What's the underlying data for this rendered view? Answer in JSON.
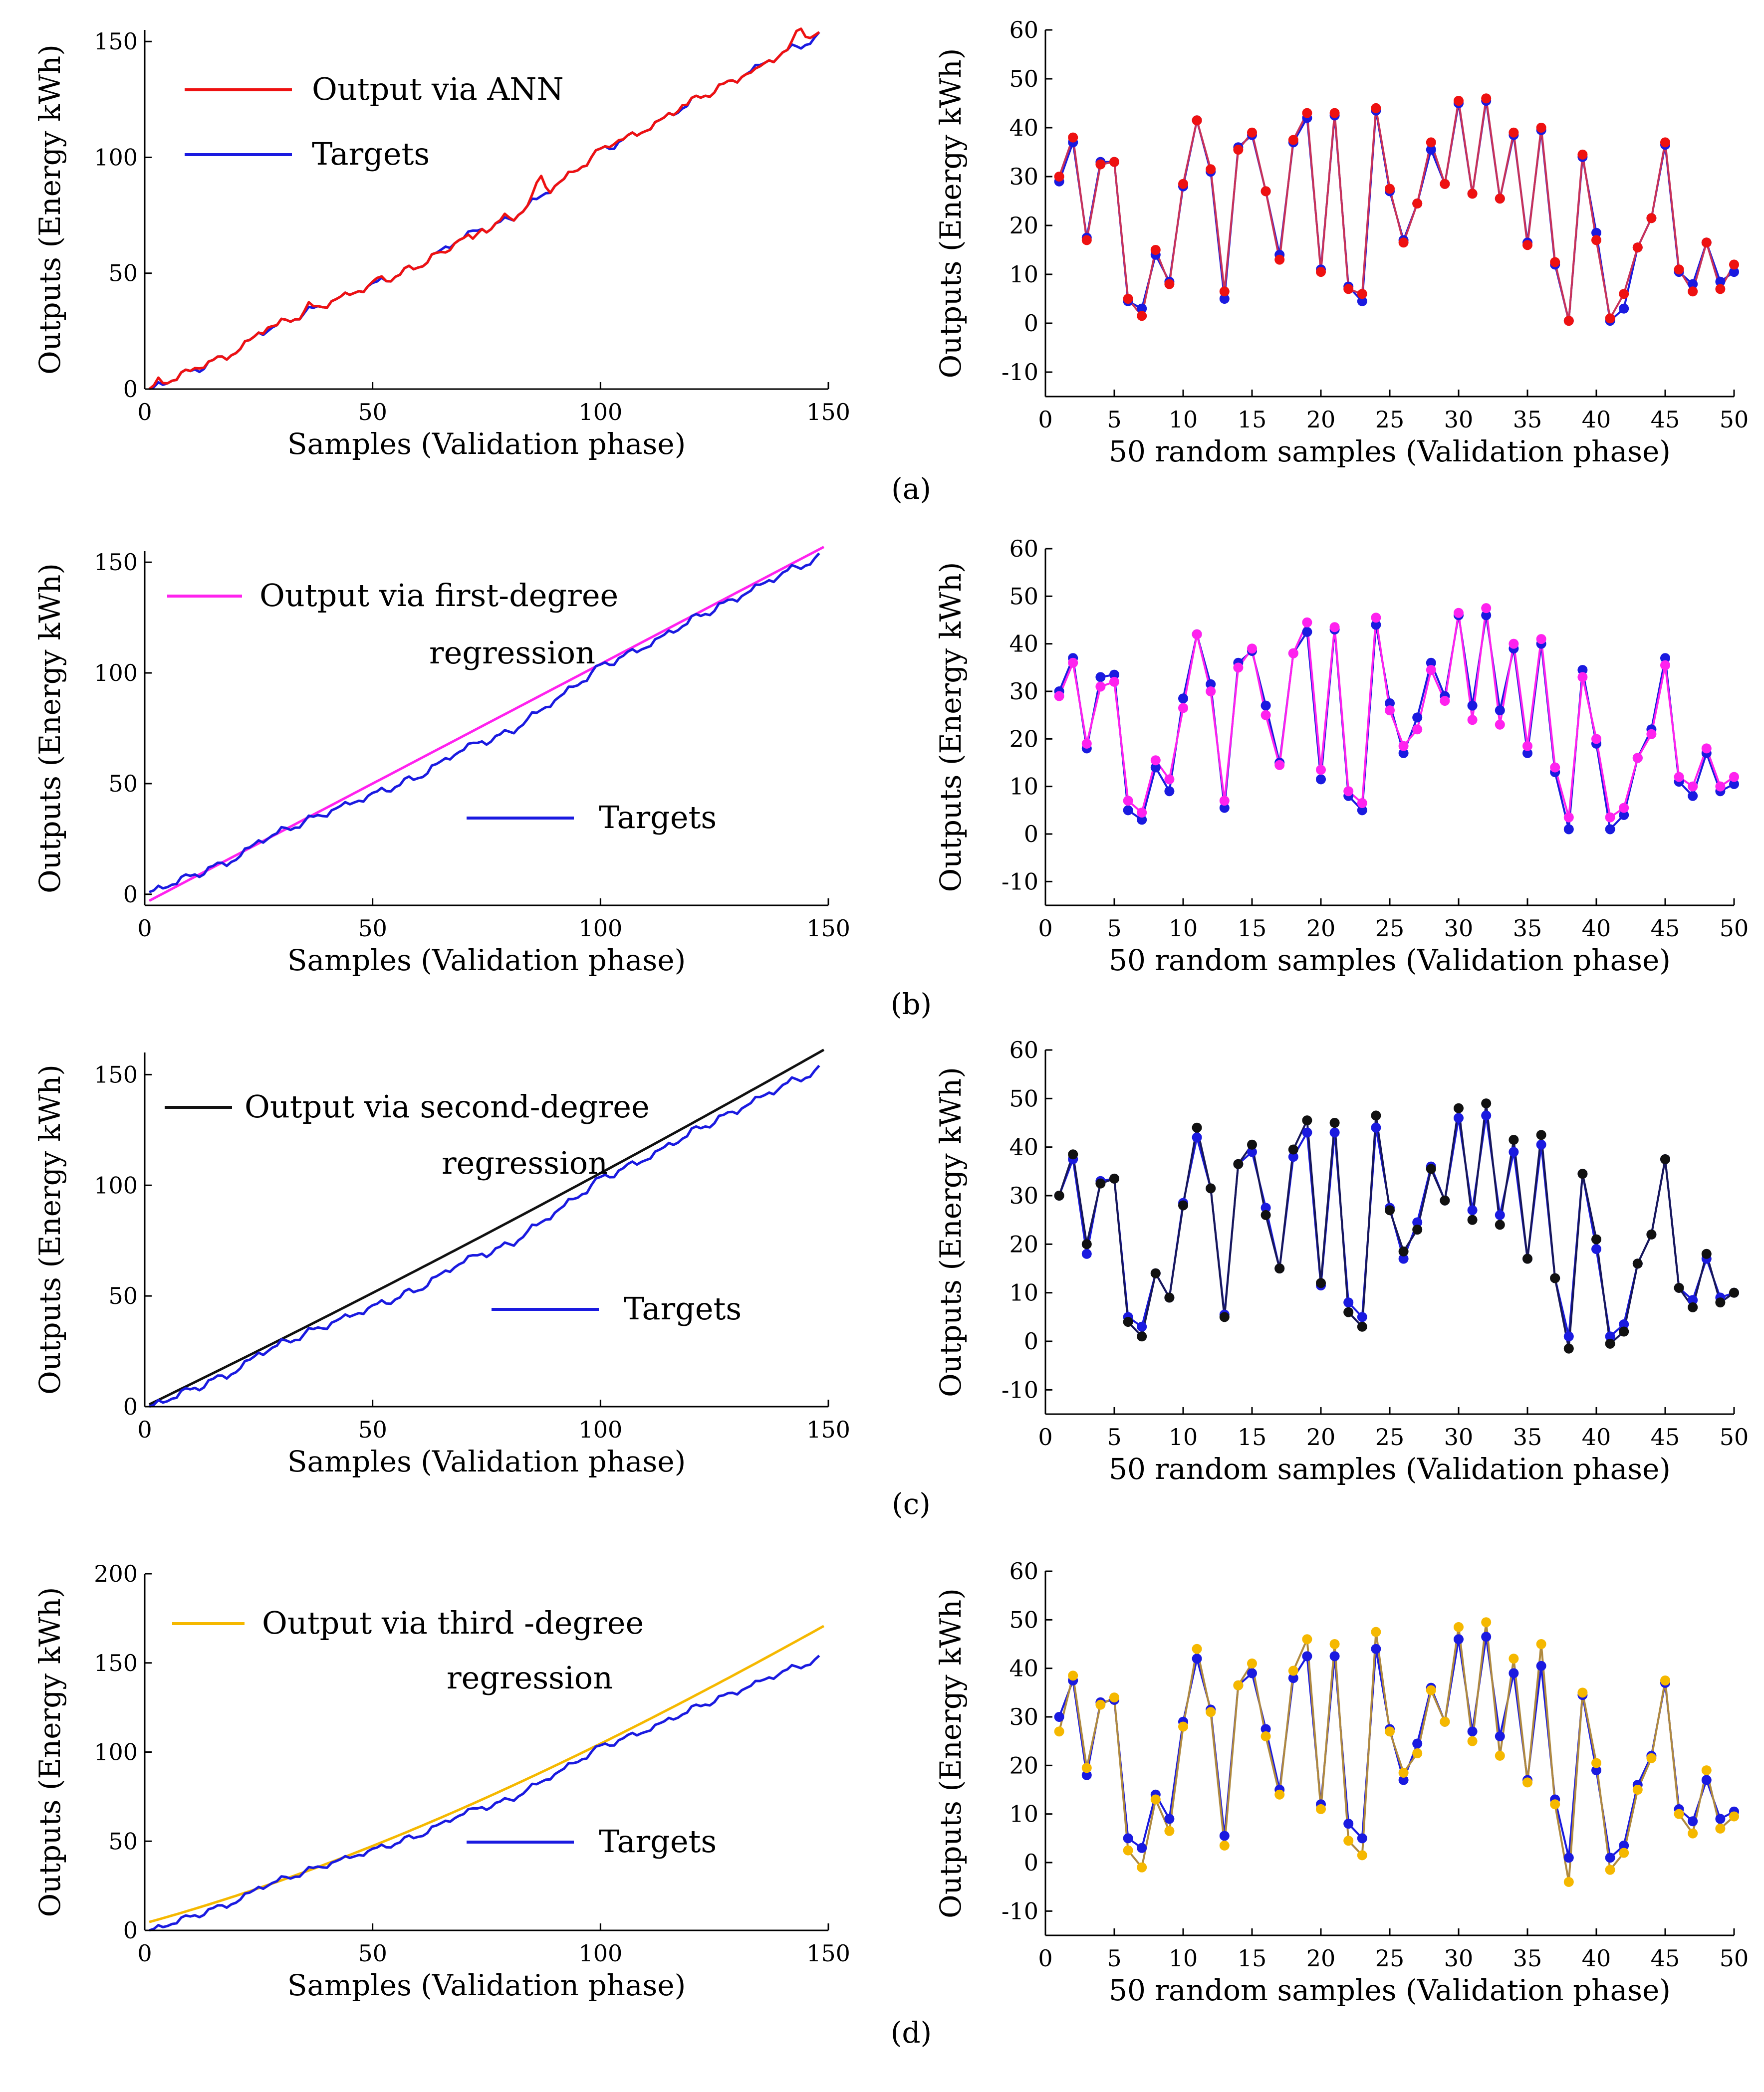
{
  "panel_labels": [
    "(a)",
    "(b)",
    "(c)",
    "(d)"
  ],
  "chart_data": [
    {
      "id": "a_left",
      "type": "line",
      "xlabel": "Samples (Validation phase)",
      "ylabel": "Outputs (Energy kWh)",
      "xlim": [
        0,
        150
      ],
      "ylim": [
        0,
        155
      ],
      "xticks": [
        0,
        50,
        100,
        150
      ],
      "yticks": [
        0,
        50,
        100,
        150
      ],
      "series": [
        {
          "name": "Output via ANN",
          "color": "#ee1111",
          "legend_text": "Output via ANN",
          "kind": "ann",
          "points": [
            [
              1,
              0
            ],
            [
              20,
              16
            ],
            [
              25,
              24
            ],
            [
              40,
              37
            ],
            [
              60,
              53
            ],
            [
              70,
              66
            ],
            [
              80,
              73
            ],
            [
              95,
              95
            ],
            [
              100,
              103
            ],
            [
              110,
              112
            ],
            [
              120,
              124
            ],
            [
              130,
              134
            ],
            [
              140,
              145
            ],
            [
              148,
              152
            ]
          ],
          "bumps": [
            [
              3,
              2
            ],
            [
              12,
              1.5
            ],
            [
              27,
              1.5
            ],
            [
              36,
              2
            ],
            [
              51,
              1.5
            ],
            [
              66,
              -2.5
            ],
            [
              72,
              -3.5
            ],
            [
              79,
              1.5
            ],
            [
              86,
              4.5
            ],
            [
              87,
              7
            ],
            [
              103,
              2
            ],
            [
              118,
              1.5
            ],
            [
              134,
              -1.5
            ],
            [
              143,
              4
            ],
            [
              144,
              7
            ],
            [
              146,
              2.5
            ]
          ]
        },
        {
          "name": "Targets",
          "color": "#1a1ae0",
          "legend_text": "Targets",
          "kind": "target",
          "points": [
            [
              1,
              0
            ],
            [
              20,
              16
            ],
            [
              25,
              24
            ],
            [
              40,
              37
            ],
            [
              60,
              53
            ],
            [
              70,
              66
            ],
            [
              80,
              73
            ],
            [
              95,
              95
            ],
            [
              100,
              103
            ],
            [
              110,
              112
            ],
            [
              120,
              124
            ],
            [
              130,
              134
            ],
            [
              140,
              145
            ],
            [
              148,
              152
            ]
          ]
        }
      ],
      "legend": [
        {
          "label": "Output via ANN",
          "line2": "",
          "color": "#ee1111"
        },
        {
          "label": "Targets",
          "line2": "",
          "color": "#1a1ae0"
        }
      ]
    },
    {
      "id": "b_left",
      "type": "line",
      "xlabel": "Samples (Validation phase)",
      "ylabel": "Outputs (Energy kWh)",
      "xlim": [
        0,
        150
      ],
      "ylim": [
        -5,
        155
      ],
      "xticks": [
        0,
        50,
        100,
        150
      ],
      "yticks": [
        0,
        50,
        100,
        150
      ],
      "series": [
        {
          "name": "Output via first-degree regression",
          "color": "#ff22ee",
          "kind": "poly",
          "coef": [
            -4,
            1.08,
            0,
            0
          ],
          "x0": 1,
          "x1": 149
        },
        {
          "name": "Targets",
          "color": "#1a1ae0",
          "kind": "target",
          "points": [
            [
              1,
              1
            ],
            [
              20,
              16
            ],
            [
              25,
              24
            ],
            [
              40,
              37
            ],
            [
              60,
              53
            ],
            [
              70,
              66
            ],
            [
              80,
              73
            ],
            [
              95,
              95
            ],
            [
              100,
              103
            ],
            [
              110,
              112
            ],
            [
              120,
              124
            ],
            [
              130,
              134
            ],
            [
              140,
              145
            ],
            [
              148,
              152
            ]
          ]
        }
      ],
      "legend": [
        {
          "label": "Output via first-degree",
          "line2": "regression",
          "color": "#ff22ee"
        },
        {
          "label": "Targets",
          "line2": "",
          "color": "#1a1ae0"
        }
      ]
    },
    {
      "id": "c_left",
      "type": "line",
      "xlabel": "Samples (Validation phase)",
      "ylabel": "Outputs (Energy kWh)",
      "xlim": [
        0,
        150
      ],
      "ylim": [
        0,
        160
      ],
      "xticks": [
        0,
        50,
        100,
        150
      ],
      "yticks": [
        0,
        50,
        100,
        150
      ],
      "series": [
        {
          "name": "Output via second-degree regression",
          "color": "#111111",
          "kind": "poly",
          "coef": [
            0,
            1.0,
            0.00055,
            0
          ],
          "x0": 1,
          "x1": 149
        },
        {
          "name": "Targets",
          "color": "#1a1ae0",
          "kind": "target",
          "points": [
            [
              1,
              0
            ],
            [
              20,
              16
            ],
            [
              25,
              24
            ],
            [
              40,
              37
            ],
            [
              60,
              53
            ],
            [
              70,
              66
            ],
            [
              80,
              73
            ],
            [
              95,
              95
            ],
            [
              100,
              103
            ],
            [
              110,
              112
            ],
            [
              120,
              124
            ],
            [
              130,
              134
            ],
            [
              140,
              145
            ],
            [
              148,
              152
            ]
          ]
        }
      ],
      "legend": [
        {
          "label": "Output via second-degree",
          "line2": "regression",
          "color": "#111111"
        },
        {
          "label": "Targets",
          "line2": "",
          "color": "#1a1ae0"
        }
      ]
    },
    {
      "id": "d_left",
      "type": "line",
      "xlabel": "Samples (Validation phase)",
      "ylabel": "Outputs (Energy kWh)",
      "xlim": [
        0,
        150
      ],
      "ylim": [
        0,
        200
      ],
      "xticks": [
        0,
        50,
        100,
        150
      ],
      "yticks": [
        0,
        50,
        100,
        150,
        200
      ],
      "series": [
        {
          "name": "Output via third -degree regression",
          "color": "#f5b800",
          "kind": "poly",
          "coef": [
            4,
            0.7,
            0.0036,
            -5.3e-06
          ],
          "x0": 1,
          "x1": 149
        },
        {
          "name": "Targets",
          "color": "#1a1ae0",
          "kind": "target",
          "points": [
            [
              1,
              0
            ],
            [
              20,
              16
            ],
            [
              25,
              24
            ],
            [
              40,
              37
            ],
            [
              60,
              53
            ],
            [
              70,
              66
            ],
            [
              80,
              73
            ],
            [
              95,
              95
            ],
            [
              100,
              103
            ],
            [
              110,
              112
            ],
            [
              120,
              124
            ],
            [
              130,
              134
            ],
            [
              140,
              145
            ],
            [
              148,
              152
            ]
          ]
        }
      ],
      "legend": [
        {
          "label": "Output via third -degree",
          "line2": "regression",
          "color": "#f5b800"
        },
        {
          "label": "Targets",
          "line2": "",
          "color": "#1a1ae0"
        }
      ]
    },
    {
      "id": "a_right",
      "type": "line-markers",
      "xlabel": "50 random samples (Validation phase)",
      "ylabel": "Outputs (Energy kWh)",
      "xlim": [
        0,
        50
      ],
      "ylim": [
        -15,
        60
      ],
      "xticks": [
        0,
        5,
        10,
        15,
        20,
        25,
        30,
        35,
        40,
        45,
        50
      ],
      "yticks": [
        -10,
        0,
        10,
        20,
        30,
        40,
        50,
        60
      ],
      "targets": [
        29,
        37,
        17.5,
        33,
        33,
        4.5,
        3,
        14,
        8.5,
        28,
        41.5,
        31,
        5,
        36,
        38.5,
        27,
        14,
        37,
        42,
        11,
        42.5,
        7.5,
        4.5,
        43.5,
        27,
        17,
        24.5,
        35.5,
        28.5,
        45,
        26.5,
        45.5,
        25.5,
        38.5,
        16.5,
        39.5,
        12,
        0.5,
        34,
        18.5,
        0.5,
        3,
        15.5,
        21.5,
        36.5,
        10.5,
        8,
        16.5,
        8.5,
        10.5
      ],
      "outputs": [
        30,
        38,
        17,
        32.5,
        33,
        5,
        1.5,
        15,
        8,
        28.5,
        41.5,
        31.5,
        6.5,
        35.5,
        39,
        27,
        13,
        37.5,
        43,
        10.5,
        43,
        7,
        6,
        44,
        27.5,
        16.5,
        24.5,
        37,
        28.5,
        45.5,
        26.5,
        46,
        25.5,
        39,
        16,
        40,
        12.5,
        0.5,
        34.5,
        17,
        1,
        6,
        15.5,
        21.5,
        37,
        11,
        6.5,
        16.5,
        7,
        12
      ],
      "target_color": "#1a1ae0",
      "output_color": "#ee1111",
      "line_color": "#c8325a"
    },
    {
      "id": "b_right",
      "type": "line-markers",
      "xlabel": "50 random samples (Validation phase)",
      "ylabel": "Outputs (Energy kWh)",
      "xlim": [
        0,
        50
      ],
      "ylim": [
        -15,
        60
      ],
      "xticks": [
        0,
        5,
        10,
        15,
        20,
        25,
        30,
        35,
        40,
        45,
        50
      ],
      "yticks": [
        -10,
        0,
        10,
        20,
        30,
        40,
        50,
        60
      ],
      "targets": [
        30,
        37,
        18,
        33,
        33.5,
        5,
        3,
        14,
        9,
        28.5,
        42,
        31.5,
        5.5,
        36,
        38.5,
        27,
        15,
        38,
        42.5,
        11.5,
        43,
        8,
        5,
        44,
        27.5,
        17,
        24.5,
        36,
        29,
        46,
        27,
        46,
        26,
        39,
        17,
        40,
        13,
        1,
        34.5,
        19,
        1,
        4,
        16,
        22,
        37,
        11,
        8,
        17,
        9,
        10.5
      ],
      "outputs": [
        29,
        36,
        19,
        31,
        32,
        7,
        4.5,
        15.5,
        11.5,
        26.5,
        42,
        30,
        7,
        35,
        39,
        25,
        14.5,
        38,
        44.5,
        13.5,
        43.5,
        9,
        6.5,
        45.5,
        26,
        18.5,
        22,
        34.5,
        28,
        46.5,
        24,
        47.5,
        23,
        40,
        18.5,
        41,
        14,
        3.5,
        33,
        20,
        3.5,
        5.5,
        16,
        21,
        35.5,
        12,
        10,
        18,
        10,
        12
      ],
      "target_color": "#1a1ae0",
      "output_color": "#ff22ee",
      "line_color": "#ff22ee"
    },
    {
      "id": "c_right",
      "type": "line-markers",
      "xlabel": "50 random samples (Validation phase)",
      "ylabel": "Outputs (Energy kWh)",
      "xlim": [
        0,
        50
      ],
      "ylim": [
        -15,
        60
      ],
      "xticks": [
        0,
        5,
        10,
        15,
        20,
        25,
        30,
        35,
        40,
        45,
        50
      ],
      "yticks": [
        -10,
        0,
        10,
        20,
        30,
        40,
        50,
        60
      ],
      "targets": [
        30,
        37.5,
        18,
        33,
        33.5,
        5,
        3,
        14,
        9,
        28.5,
        42,
        31.5,
        5.5,
        36.5,
        39,
        27.5,
        15,
        38,
        43,
        11.5,
        43,
        8,
        5,
        44,
        27.5,
        17,
        24.5,
        36,
        29,
        46,
        27,
        46.5,
        26,
        39,
        17,
        40.5,
        13,
        1,
        34.5,
        19,
        1,
        3.5,
        16,
        22,
        37.5,
        11,
        8.5,
        17,
        9,
        10
      ],
      "outputs": [
        30,
        38.5,
        20,
        32.5,
        33.5,
        4,
        1,
        14,
        9,
        28,
        44,
        31.5,
        5,
        36.5,
        40.5,
        26,
        15,
        39.5,
        45.5,
        12,
        45,
        6,
        3,
        46.5,
        27,
        18.5,
        23,
        35.5,
        29,
        48,
        25,
        49,
        24,
        41.5,
        17,
        42.5,
        13,
        -1.5,
        34.5,
        21,
        -0.5,
        2,
        16,
        22,
        37.5,
        11,
        7,
        18,
        8,
        10
      ],
      "target_color": "#1a1ae0",
      "output_color": "#111111",
      "line_color": "#17175a"
    },
    {
      "id": "d_right",
      "type": "line-markers",
      "xlabel": "50 random samples (Validation phase)",
      "ylabel": "Outputs (Energy kWh)",
      "xlim": [
        0,
        50
      ],
      "ylim": [
        -15,
        60
      ],
      "xticks": [
        0,
        5,
        10,
        15,
        20,
        25,
        30,
        35,
        40,
        45,
        50
      ],
      "yticks": [
        -10,
        0,
        10,
        20,
        30,
        40,
        50,
        60
      ],
      "targets": [
        30,
        37.5,
        18,
        33,
        33.5,
        5,
        3,
        14,
        9,
        29,
        42,
        31.5,
        5.5,
        36.5,
        39,
        27.5,
        15,
        38,
        42.5,
        12,
        42.5,
        8,
        5,
        44,
        27.5,
        17,
        24.5,
        36,
        29,
        46,
        27,
        46.5,
        26,
        39,
        17,
        40.5,
        13,
        1,
        34.5,
        19,
        1,
        3.5,
        16,
        22,
        37,
        11,
        8.5,
        17,
        9,
        10.5
      ],
      "outputs": [
        27,
        38.5,
        19.5,
        32.5,
        34,
        2.5,
        -1,
        13,
        6.5,
        28,
        44,
        31,
        3.5,
        36.5,
        41,
        26,
        14,
        39.5,
        46,
        11,
        45,
        4.5,
        1.5,
        47.5,
        27,
        18.5,
        22.5,
        35.5,
        29,
        48.5,
        25,
        49.5,
        22,
        42,
        16.5,
        45,
        12,
        -4,
        35,
        20.5,
        -1.5,
        2,
        15,
        21.5,
        37.5,
        10,
        6,
        19,
        7,
        9.5
      ],
      "target_color": "#1a1ae0",
      "output_color": "#f5b800",
      "line_color": "#b08a40"
    }
  ]
}
